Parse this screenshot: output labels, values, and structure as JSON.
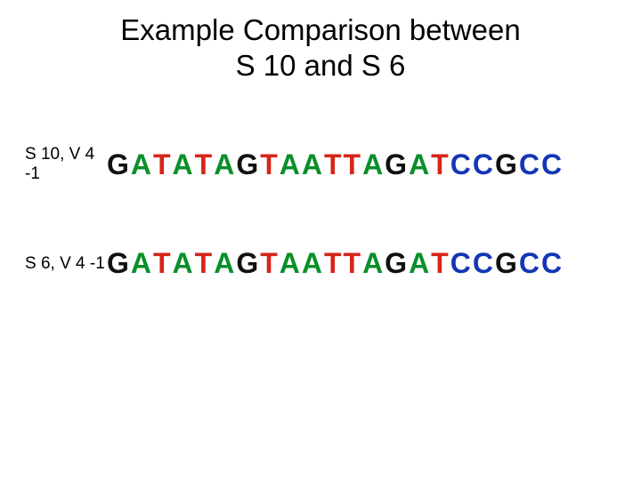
{
  "title": "Example Comparison between\nS 10 and S 6",
  "rows": [
    {
      "label": "S 10, V 4 -1",
      "sequence": "GATATAGTAATTAGATCCGCC"
    },
    {
      "label": "S 6, V 4 -1",
      "sequence": "GATATAGTAATTAGATCCGCC"
    }
  ],
  "base_colors": {
    "A": "#0a8f2a",
    "T": "#d6251a",
    "G": "#111111",
    "C": "#1236b5"
  },
  "title_fontsize": 33,
  "label_fontsize": 19,
  "sequence_fontsize": 32,
  "sequence_letter_spacing": 2,
  "background_color": "#ffffff"
}
